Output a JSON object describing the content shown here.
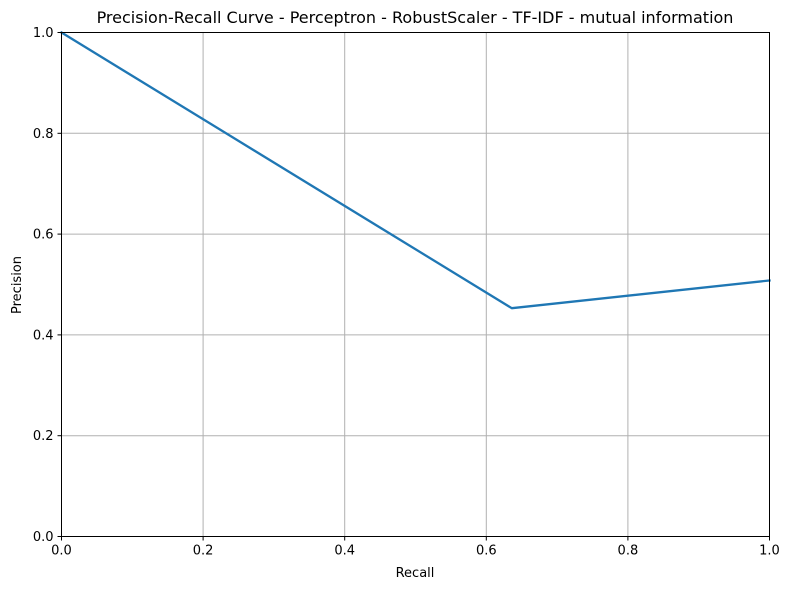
{
  "chart_data": {
    "type": "line",
    "title": "Precision-Recall Curve - Perceptron - RobustScaler - TF-IDF - mutual information",
    "xlabel": "Recall",
    "ylabel": "Precision",
    "xlim": [
      0,
      1
    ],
    "ylim": [
      0,
      1
    ],
    "xticks": [
      0.0,
      0.2,
      0.4,
      0.6,
      0.8,
      1.0
    ],
    "yticks": [
      0.0,
      0.2,
      0.4,
      0.6,
      0.8,
      1.0
    ],
    "xtick_labels": [
      "0.0",
      "0.2",
      "0.4",
      "0.6",
      "0.8",
      "1.0"
    ],
    "ytick_labels": [
      "0.0",
      "0.2",
      "0.4",
      "0.6",
      "0.8",
      "1.0"
    ],
    "grid": true,
    "legend": "none",
    "series": [
      {
        "color": "#1f77b4",
        "x": [
          0.0,
          0.636,
          1.0
        ],
        "y": [
          1.0,
          0.453,
          0.508
        ]
      }
    ]
  }
}
